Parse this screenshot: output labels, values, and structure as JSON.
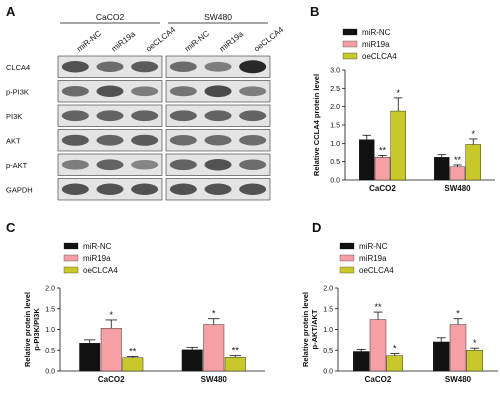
{
  "panel_letters": [
    "A",
    "B",
    "C",
    "D"
  ],
  "blot": {
    "groups": [
      {
        "name": "CaCO2",
        "lanes": [
          "miR-NC",
          "miR19a",
          "oeCLCA4"
        ]
      },
      {
        "name": "SW480",
        "lanes": [
          "miR-NC",
          "miR19a",
          "oeCLCA4"
        ]
      }
    ],
    "proteins": [
      "CLCA4",
      "p-PI3K",
      "PI3K",
      "AKT",
      "p-AKT",
      "GAPDH"
    ],
    "band_intensity": {
      "CLCA4": [
        [
          0.7,
          0.55,
          0.65
        ],
        [
          0.55,
          0.45,
          0.95
        ]
      ],
      "p-PI3K": [
        [
          0.55,
          0.7,
          0.45
        ],
        [
          0.5,
          0.75,
          0.45
        ]
      ],
      "PI3K": [
        [
          0.6,
          0.6,
          0.6
        ],
        [
          0.6,
          0.6,
          0.6
        ]
      ],
      "AKT": [
        [
          0.65,
          0.6,
          0.65
        ],
        [
          0.55,
          0.55,
          0.55
        ]
      ],
      "p-AKT": [
        [
          0.45,
          0.6,
          0.4
        ],
        [
          0.6,
          0.7,
          0.55
        ]
      ],
      "GAPDH": [
        [
          0.7,
          0.7,
          0.7
        ],
        [
          0.7,
          0.7,
          0.7
        ]
      ]
    }
  },
  "colors": {
    "miR-NC": "#111111",
    "miR19a": "#f4a0a4",
    "oeCLCA4": "#c9c82a"
  },
  "chart_data": [
    {
      "panel": "B",
      "type": "bar",
      "categories": [
        "CaCO2",
        "SW480"
      ],
      "series": [
        {
          "name": "miR-NC",
          "values": [
            1.1,
            0.62
          ],
          "errors": [
            0.12,
            0.07
          ]
        },
        {
          "name": "miR19a",
          "values": [
            0.62,
            0.36
          ],
          "errors": [
            0.05,
            0.05
          ]
        },
        {
          "name": "oeCLCA4",
          "values": [
            1.88,
            0.97
          ],
          "errors": [
            0.36,
            0.15
          ]
        }
      ],
      "significance": [
        [
          "",
          "**",
          "*"
        ],
        [
          "",
          "**",
          "*"
        ]
      ],
      "ylabel": "Relative CCLA4 protein level",
      "ylim": [
        0,
        3
      ],
      "yticks": [
        "0.0",
        "0.5",
        "1.0",
        "1.5",
        "2.0",
        "2.5",
        "3.0"
      ],
      "legend": "top-left"
    },
    {
      "panel": "C",
      "type": "bar",
      "categories": [
        "CaCO2",
        "SW480"
      ],
      "series": [
        {
          "name": "miR-NC",
          "values": [
            0.67,
            0.51
          ],
          "errors": [
            0.08,
            0.06
          ]
        },
        {
          "name": "miR19a",
          "values": [
            1.03,
            1.12
          ],
          "errors": [
            0.2,
            0.14
          ]
        },
        {
          "name": "oeCLCA4",
          "values": [
            0.32,
            0.33
          ],
          "errors": [
            0.03,
            0.04
          ]
        }
      ],
      "significance": [
        [
          "",
          "*",
          "**"
        ],
        [
          "",
          "*",
          "**"
        ]
      ],
      "ylabel": "Relative protein level\np-PI3K/PI3K",
      "ylim": [
        0,
        2
      ],
      "yticks": [
        "0.0",
        "0.5",
        "1.0",
        "1.5",
        "2.0"
      ],
      "legend": "top-left"
    },
    {
      "panel": "D",
      "type": "bar",
      "categories": [
        "CaCO2",
        "SW480"
      ],
      "series": [
        {
          "name": "miR-NC",
          "values": [
            0.47,
            0.7
          ],
          "errors": [
            0.05,
            0.1
          ]
        },
        {
          "name": "miR19a",
          "values": [
            1.24,
            1.12
          ],
          "errors": [
            0.18,
            0.14
          ]
        },
        {
          "name": "oeCLCA4",
          "values": [
            0.37,
            0.5
          ],
          "errors": [
            0.05,
            0.05
          ]
        }
      ],
      "significance": [
        [
          "",
          "**",
          "*"
        ],
        [
          "",
          "*",
          "*"
        ]
      ],
      "ylabel": "Relative protein level\np-AKT/AKT",
      "ylim": [
        0,
        2
      ],
      "yticks": [
        "0.0",
        "0.5",
        "1.0",
        "1.5",
        "2.0"
      ],
      "legend": "top-left"
    }
  ]
}
